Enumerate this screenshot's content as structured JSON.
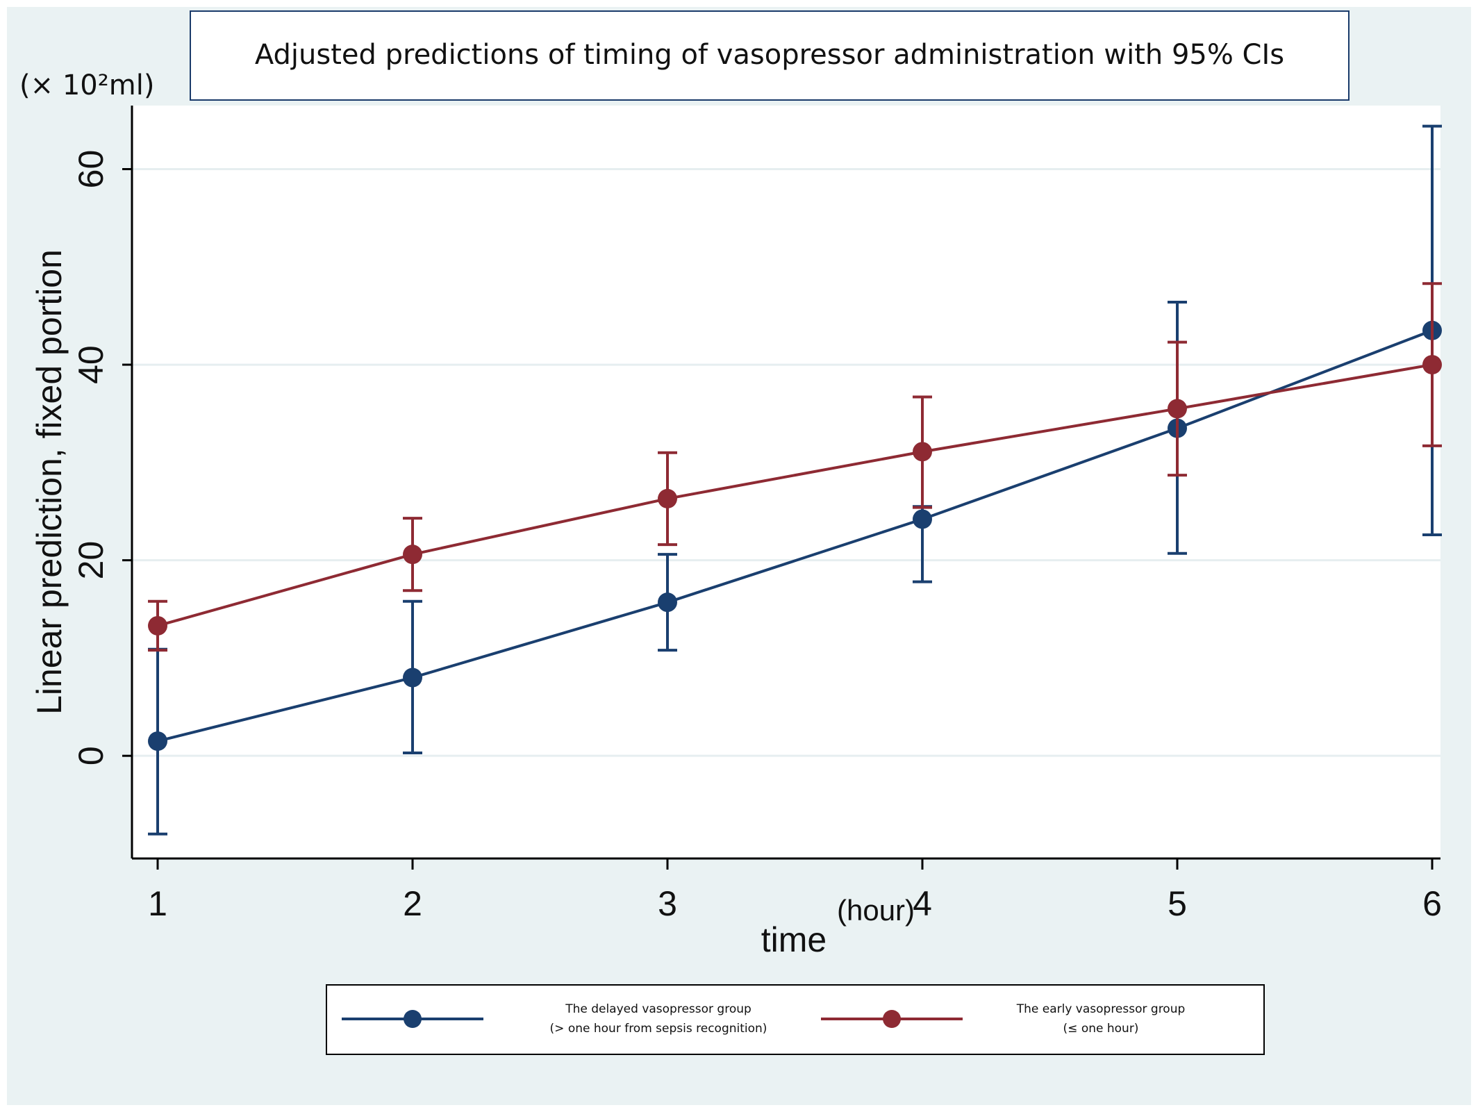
{
  "chart_data": {
    "type": "line",
    "title": "Adjusted predictions of timing of vasopressor administration  with 95% CIs",
    "unit_label": "(× 10²ml)",
    "xlabel": "time",
    "xlabel_unit": "(hour)",
    "ylabel": "Linear prediction, fixed portion",
    "x": [
      1,
      2,
      3,
      4,
      5,
      6
    ],
    "xlim": [
      1,
      6
    ],
    "ylim": [
      -10.5,
      66.5
    ],
    "x_ticks": [
      "1",
      "2",
      "3",
      "4",
      "5",
      "6"
    ],
    "y_ticks": [
      0,
      20,
      40,
      60
    ],
    "y_tick_labels": [
      "0",
      "20",
      "40",
      "60"
    ],
    "grid": true,
    "legend_position": "bottom",
    "series": [
      {
        "name": "The delayed vasopressor group",
        "name_line2": "(> one hour from sepsis recognition)",
        "color": "#1a3f6f",
        "values": [
          1.5,
          8.0,
          15.7,
          24.2,
          33.5,
          43.5
        ],
        "ci_lower": [
          -8.0,
          0.3,
          10.8,
          17.8,
          20.7,
          22.6
        ],
        "ci_upper": [
          10.9,
          15.8,
          20.6,
          25.5,
          46.4,
          64.4
        ]
      },
      {
        "name": "The early vasopressor group",
        "name_line2": "(≤ one hour)",
        "color": "#8e2a33",
        "values": [
          13.3,
          20.6,
          26.3,
          31.1,
          35.5,
          40.0
        ],
        "ci_lower": [
          10.8,
          16.9,
          21.6,
          25.4,
          28.7,
          31.7
        ],
        "ci_upper": [
          15.8,
          24.3,
          31.0,
          36.7,
          42.3,
          48.3
        ]
      }
    ]
  }
}
